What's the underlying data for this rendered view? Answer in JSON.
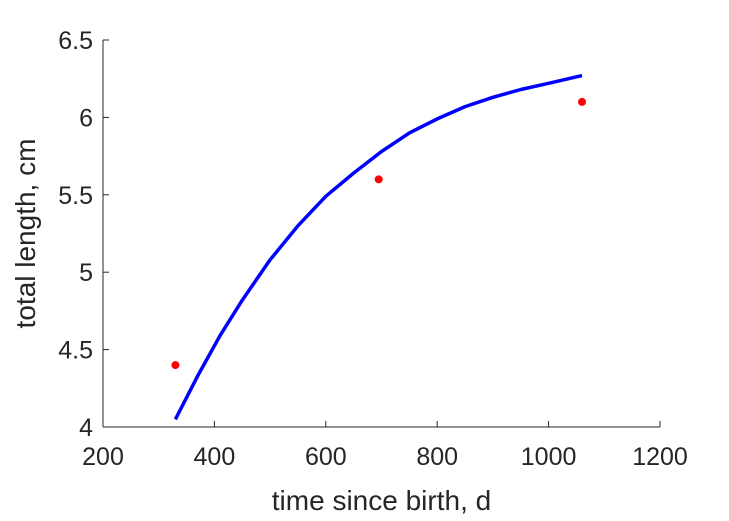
{
  "chart_data": {
    "type": "line",
    "title": "",
    "xlabel": "time since birth, d",
    "ylabel": "total length, cm",
    "xlim": [
      200,
      1200
    ],
    "ylim": [
      4,
      6.5
    ],
    "xticks": [
      "200",
      "400",
      "600",
      "800",
      "1000",
      "1200"
    ],
    "yticks": [
      "4",
      "4.5",
      "5",
      "5.5",
      "6",
      "6.5"
    ],
    "grid": false,
    "series": [
      {
        "type": "line",
        "color": "#0000ff",
        "x": [
          330,
          370,
          410,
          450,
          500,
          550,
          600,
          650,
          700,
          750,
          800,
          850,
          900,
          950,
          1000,
          1060
        ],
        "y": [
          4.05,
          4.33,
          4.59,
          4.82,
          5.08,
          5.3,
          5.49,
          5.64,
          5.78,
          5.9,
          5.99,
          6.07,
          6.13,
          6.18,
          6.22,
          6.27
        ]
      },
      {
        "type": "scatter",
        "color": "#ff0000",
        "x": [
          330,
          695,
          1060
        ],
        "y": [
          4.4,
          5.6,
          6.1
        ]
      }
    ]
  }
}
